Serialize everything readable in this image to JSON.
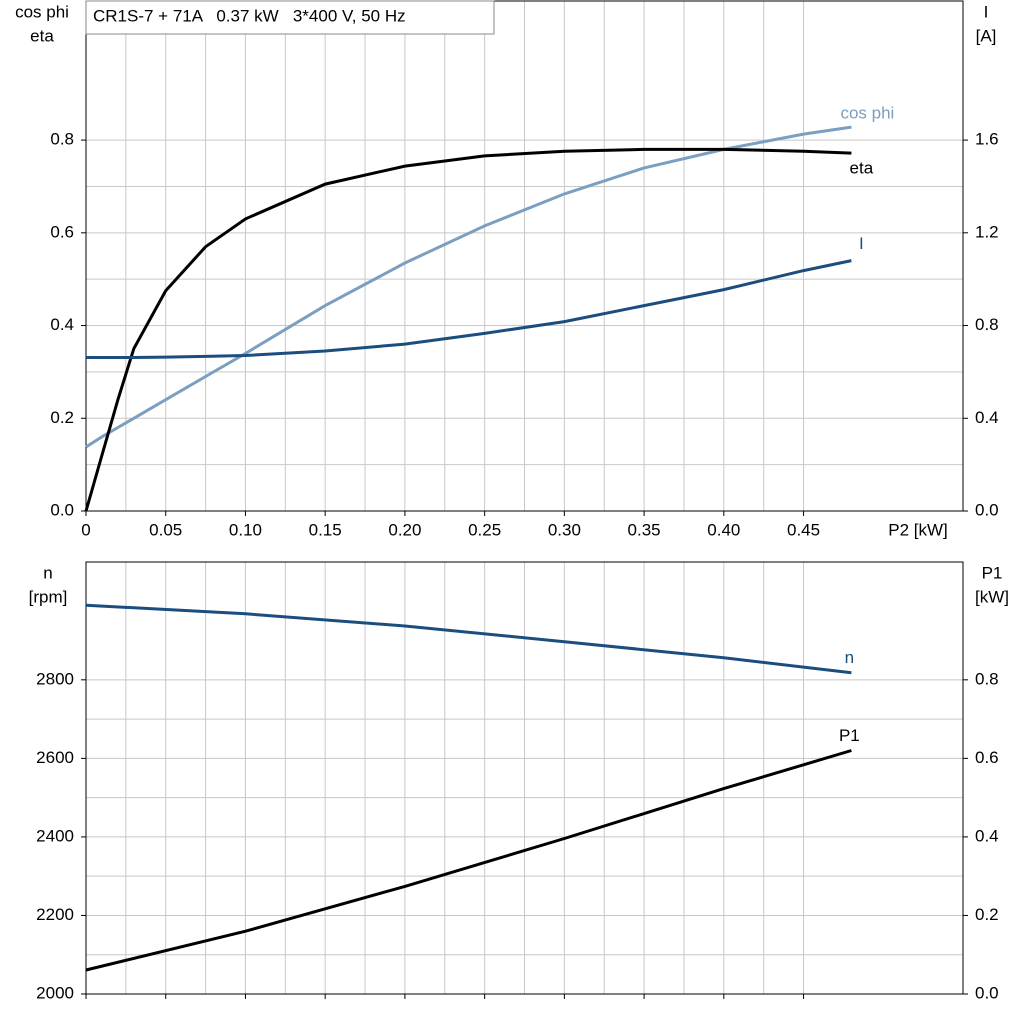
{
  "chart_data": [
    {
      "type": "line",
      "title": "CR1S-7 + 71A   0.37 kW   3*400 V, 50 Hz",
      "xlabel": "P2 [kW]",
      "ylabel": [
        "cos phi",
        "eta"
      ],
      "y2label": [
        "I",
        "[A]"
      ],
      "show_xtick_labels": true,
      "grid": true,
      "x": [
        0,
        0.01,
        0.02,
        0.03,
        0.05,
        0.075,
        0.1,
        0.15,
        0.2,
        0.25,
        0.3,
        0.35,
        0.4,
        0.45,
        0.48
      ],
      "xlim": [
        0,
        0.55
      ],
      "xticks": [
        0,
        0.05,
        {
          "value": 0.1,
          "label": "0.10"
        },
        0.15,
        {
          "value": 0.2,
          "label": "0.20"
        },
        0.25,
        {
          "value": 0.3,
          "label": "0.30"
        },
        0.35,
        {
          "value": 0.4,
          "label": "0.40"
        },
        0.45
      ],
      "ylim": [
        0,
        1.1
      ],
      "yticks": [
        {
          "value": 0,
          "label": "0.0"
        },
        0.2,
        0.4,
        0.6,
        0.8
      ],
      "y2lim": [
        0,
        2.2
      ],
      "y2ticks": [
        {
          "value": 0,
          "label": "0.0"
        },
        0.4,
        0.8,
        1.2,
        1.6
      ],
      "series": [
        {
          "name": "cos phi",
          "color": "#7b9fc0",
          "values": [
            0.138,
            0.16,
            0.18,
            0.2,
            0.24,
            0.29,
            0.34,
            0.443,
            0.535,
            0.615,
            0.684,
            0.74,
            0.78,
            0.813,
            0.828
          ]
        },
        {
          "name": "eta",
          "color": "#000000",
          "values": [
            0,
            0.12,
            0.24,
            0.35,
            0.475,
            0.57,
            0.63,
            0.705,
            0.744,
            0.766,
            0.776,
            0.78,
            0.78,
            0.776,
            0.772
          ]
        },
        {
          "name": "I",
          "color": "#1b4d7e",
          "axis": "y2",
          "values": [
            0.662,
            0.662,
            0.662,
            0.662,
            0.664,
            0.667,
            0.671,
            0.69,
            0.72,
            0.766,
            0.817,
            0.886,
            0.955,
            1.037,
            1.08
          ]
        }
      ]
    },
    {
      "type": "line",
      "ylabel": [
        "n",
        "[rpm]"
      ],
      "y2label": [
        "P1",
        "[kW]"
      ],
      "show_xtick_labels": false,
      "grid": true,
      "x": [
        0,
        0.1,
        0.2,
        0.3,
        0.4,
        0.48
      ],
      "xlim": [
        0,
        0.55
      ],
      "xticks": [
        0,
        0.05,
        0.1,
        0.15,
        0.2,
        0.25,
        0.3,
        0.35,
        0.4,
        0.45
      ],
      "ylim": [
        2000,
        3100
      ],
      "yticks": [
        2000,
        2200,
        2400,
        2600,
        2800
      ],
      "y2lim": [
        0,
        1.1
      ],
      "y2ticks": [
        {
          "value": 0,
          "label": "0.0"
        },
        0.2,
        0.4,
        0.6,
        0.8
      ],
      "series": [
        {
          "name": "n",
          "color": "#1b4d7e",
          "values": [
            2990,
            2968,
            2937,
            2897,
            2856,
            2818
          ]
        },
        {
          "name": "P1",
          "color": "#000000",
          "axis": "y2",
          "values": [
            0.061,
            0.16,
            0.274,
            0.396,
            0.523,
            0.62
          ]
        }
      ]
    }
  ]
}
